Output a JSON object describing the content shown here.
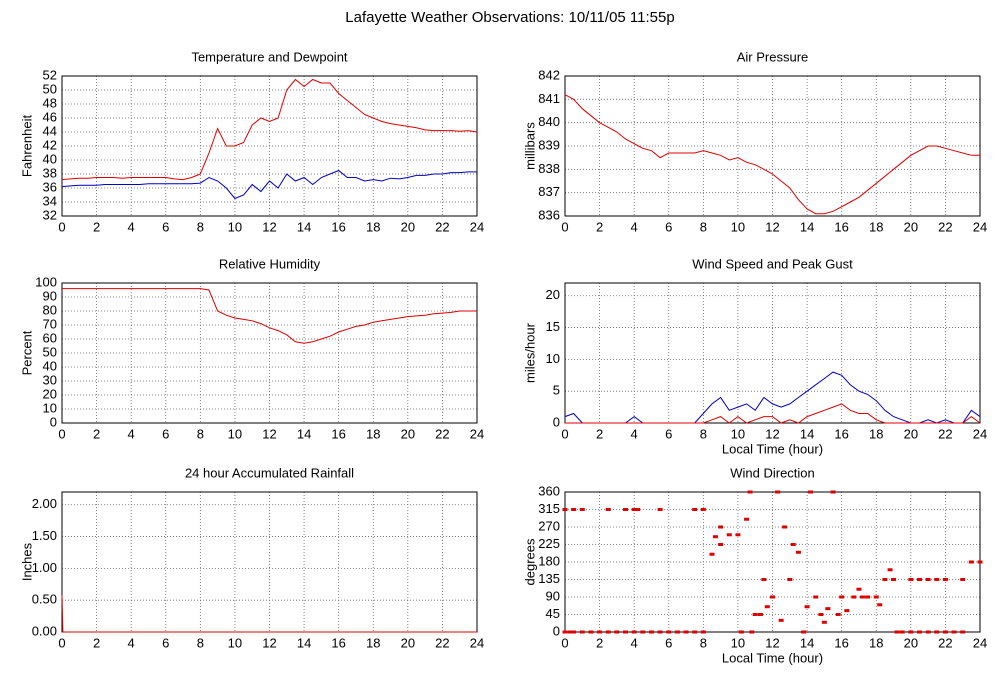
{
  "title": "Lafayette Weather Observations: 10/11/05 11:55p",
  "chart_data": [
    {
      "type": "line",
      "title": "Temperature and Dewpoint",
      "ylabel": "Fahrenheit",
      "x": [
        0,
        0.5,
        1,
        1.5,
        2,
        2.5,
        3,
        3.5,
        4,
        4.5,
        5,
        5.5,
        6,
        6.5,
        7,
        7.5,
        8,
        8.5,
        9,
        9.5,
        10,
        10.5,
        11,
        11.5,
        12,
        12.5,
        13,
        13.5,
        14,
        14.5,
        15,
        15.5,
        16,
        16.5,
        17,
        17.5,
        18,
        18.5,
        19,
        19.5,
        20,
        20.5,
        21,
        21.5,
        22,
        22.5,
        23,
        23.5,
        24
      ],
      "series": [
        {
          "color": "#e00000",
          "values": [
            37.2,
            37.3,
            37.4,
            37.4,
            37.5,
            37.5,
            37.5,
            37.4,
            37.5,
            37.5,
            37.5,
            37.5,
            37.5,
            37.3,
            37.2,
            37.5,
            38,
            41,
            44.5,
            42,
            42,
            42.5,
            45,
            46,
            45.5,
            46,
            50,
            51.5,
            50.5,
            51.5,
            51,
            51,
            49.5,
            48.5,
            47.5,
            46.5,
            46,
            45.5,
            45.2,
            45,
            44.8,
            44.6,
            44.3,
            44.2,
            44.2,
            44.2,
            44.1,
            44.2,
            44
          ]
        },
        {
          "color": "#0000c0",
          "values": [
            36.2,
            36.3,
            36.4,
            36.4,
            36.4,
            36.5,
            36.5,
            36.5,
            36.5,
            36.5,
            36.6,
            36.6,
            36.6,
            36.6,
            36.6,
            36.6,
            36.7,
            37.5,
            37,
            36,
            34.5,
            35,
            36.5,
            35.5,
            37,
            36,
            38,
            37,
            37.5,
            36.5,
            37.5,
            38,
            38.5,
            37.5,
            37.5,
            37,
            37.2,
            37,
            37.4,
            37.3,
            37.5,
            37.8,
            37.8,
            38,
            38,
            38.2,
            38.2,
            38.3,
            38.3
          ]
        }
      ],
      "xlim": [
        0,
        24
      ],
      "xticks": [
        0,
        2,
        4,
        6,
        8,
        10,
        12,
        14,
        16,
        18,
        20,
        22,
        24
      ],
      "ylim": [
        32,
        52
      ],
      "yticks": [
        32,
        34,
        36,
        38,
        40,
        42,
        44,
        46,
        48,
        50,
        52
      ],
      "grid": true
    },
    {
      "type": "line",
      "title": "Air Pressure",
      "ylabel": "millibars",
      "x": [
        0,
        0.5,
        1,
        1.5,
        2,
        2.5,
        3,
        3.5,
        4,
        4.5,
        5,
        5.5,
        6,
        6.5,
        7,
        7.5,
        8,
        8.5,
        9,
        9.5,
        10,
        10.5,
        11,
        11.5,
        12,
        12.5,
        13,
        13.5,
        14,
        14.5,
        15,
        15.5,
        16,
        16.5,
        17,
        17.5,
        18,
        18.5,
        19,
        19.5,
        20,
        20.5,
        21,
        21.5,
        22,
        22.5,
        23,
        23.5,
        24
      ],
      "series": [
        {
          "color": "#e00000",
          "values": [
            841.2,
            841,
            840.6,
            840.3,
            840,
            839.8,
            839.6,
            839.3,
            839.1,
            838.9,
            838.8,
            838.5,
            838.7,
            838.7,
            838.7,
            838.7,
            838.8,
            838.7,
            838.6,
            838.4,
            838.5,
            838.3,
            838.2,
            838,
            837.8,
            837.5,
            837.2,
            836.7,
            836.3,
            836.1,
            836.1,
            836.2,
            836.4,
            836.6,
            836.8,
            837.1,
            837.4,
            837.7,
            838,
            838.3,
            838.6,
            838.8,
            839,
            839,
            838.9,
            838.8,
            838.7,
            838.6,
            838.6
          ]
        }
      ],
      "xlim": [
        0,
        24
      ],
      "xticks": [
        0,
        2,
        4,
        6,
        8,
        10,
        12,
        14,
        16,
        18,
        20,
        22,
        24
      ],
      "ylim": [
        836,
        842
      ],
      "yticks": [
        836,
        837,
        838,
        839,
        840,
        841,
        842
      ],
      "grid": true
    },
    {
      "type": "line",
      "title": "Relative Humidity",
      "ylabel": "Percent",
      "x": [
        0,
        0.5,
        1,
        1.5,
        2,
        2.5,
        3,
        3.5,
        4,
        4.5,
        5,
        5.5,
        6,
        6.5,
        7,
        7.5,
        8,
        8.5,
        9,
        9.5,
        10,
        10.5,
        11,
        11.5,
        12,
        12.5,
        13,
        13.5,
        14,
        14.5,
        15,
        15.5,
        16,
        16.5,
        17,
        17.5,
        18,
        18.5,
        19,
        19.5,
        20,
        20.5,
        21,
        21.5,
        22,
        22.5,
        23,
        23.5,
        24
      ],
      "series": [
        {
          "color": "#e00000",
          "values": [
            96,
            96,
            96,
            96,
            96,
            96,
            96,
            96,
            96,
            96,
            96,
            96,
            96,
            96,
            96,
            96,
            96,
            95,
            80,
            77,
            75,
            74,
            73,
            71,
            68,
            66,
            63,
            58,
            57,
            58,
            60,
            62,
            65,
            67,
            69,
            70,
            72,
            73,
            74,
            75,
            76,
            76.5,
            77,
            78,
            78.5,
            79,
            80,
            80,
            80
          ]
        }
      ],
      "xlim": [
        0,
        24
      ],
      "xticks": [
        0,
        2,
        4,
        6,
        8,
        10,
        12,
        14,
        16,
        18,
        20,
        22,
        24
      ],
      "ylim": [
        0,
        100
      ],
      "yticks": [
        0,
        10,
        20,
        30,
        40,
        50,
        60,
        70,
        80,
        90,
        100
      ],
      "grid": true
    },
    {
      "type": "line",
      "title": "Wind Speed and Peak Gust",
      "ylabel": "miles/hour",
      "xlabel": "Local Time (hour)",
      "x": [
        0,
        0.5,
        1,
        1.5,
        2,
        2.5,
        3,
        3.5,
        4,
        4.5,
        5,
        5.5,
        6,
        6.5,
        7,
        7.5,
        8,
        8.5,
        9,
        9.5,
        10,
        10.5,
        11,
        11.5,
        12,
        12.5,
        13,
        13.5,
        14,
        14.5,
        15,
        15.5,
        16,
        16.5,
        17,
        17.5,
        18,
        18.5,
        19,
        19.5,
        20,
        20.5,
        21,
        21.5,
        22,
        22.5,
        23,
        23.5,
        24
      ],
      "series": [
        {
          "color": "#0000c0",
          "values": [
            1,
            1.5,
            0,
            0,
            0,
            0,
            0,
            0,
            1,
            0,
            0,
            0,
            0,
            0,
            0,
            0,
            1.5,
            3,
            4,
            2,
            2.5,
            3,
            2,
            4,
            3,
            2.5,
            3,
            4,
            5,
            6,
            7,
            8,
            7.5,
            6,
            5,
            4.5,
            3.5,
            2,
            1,
            0.5,
            0,
            0,
            0.5,
            0,
            0.5,
            0,
            0,
            2,
            1
          ]
        },
        {
          "color": "#e00000",
          "values": [
            0,
            0,
            0,
            0,
            0,
            0,
            0,
            0,
            0,
            0,
            0,
            0,
            0,
            0,
            0,
            0,
            0,
            0.5,
            1,
            0,
            1,
            0,
            0.5,
            1,
            1,
            0,
            0.5,
            0,
            1,
            1.5,
            2,
            2.5,
            3,
            2,
            1.5,
            1.5,
            0.5,
            0,
            0,
            0,
            0,
            0,
            0,
            0,
            0,
            0,
            0,
            1,
            0
          ]
        }
      ],
      "xlim": [
        0,
        24
      ],
      "xticks": [
        0,
        2,
        4,
        6,
        8,
        10,
        12,
        14,
        16,
        18,
        20,
        22,
        24
      ],
      "ylim": [
        0,
        22
      ],
      "yticks": [
        0,
        5,
        10,
        15,
        20
      ],
      "grid": true
    },
    {
      "type": "line",
      "title": "24 hour Accumulated Rainfall",
      "ylabel": "Inches",
      "x": [
        0,
        0.05,
        24
      ],
      "series": [
        {
          "color": "#e00000",
          "values": [
            0.58,
            0,
            0
          ]
        }
      ],
      "xlim": [
        0,
        24
      ],
      "xticks": [
        0,
        2,
        4,
        6,
        8,
        10,
        12,
        14,
        16,
        18,
        20,
        22,
        24
      ],
      "ylim": [
        0,
        2.2
      ],
      "yticks": [
        {
          "value": 0,
          "label": "0.00"
        },
        {
          "value": 0.5,
          "label": "0.50"
        },
        {
          "value": 1,
          "label": "1.00"
        },
        {
          "value": 1.5,
          "label": "1.50"
        },
        {
          "value": 2,
          "label": "2.00"
        }
      ],
      "grid": true
    },
    {
      "type": "scatter",
      "title": "Wind Direction",
      "ylabel": "degrees",
      "xlabel": "Local Time (hour)",
      "color": "#e00000",
      "x": [
        0,
        0.3,
        0.5,
        1,
        1.5,
        2,
        2.5,
        3,
        3.5,
        4,
        4.5,
        5,
        5.5,
        6,
        6.5,
        7,
        7.5,
        8,
        0,
        0.5,
        1,
        2.5,
        3.5,
        4,
        4.2,
        5.5,
        7.5,
        8,
        8.5,
        8.7,
        9,
        9,
        9.5,
        10,
        10.2,
        10.5,
        10.7,
        10.8,
        11,
        11.3,
        11.5,
        11.7,
        12,
        12.3,
        12.5,
        12.7,
        13,
        13.2,
        13.5,
        13.8,
        14,
        14.2,
        14.5,
        14.8,
        15,
        15.2,
        15.5,
        15.8,
        16,
        16.3,
        16.7,
        17,
        17.2,
        17.5,
        18,
        18.2,
        18.5,
        18.8,
        19,
        19.2,
        19.5,
        20,
        20.5,
        21,
        21.5,
        22,
        22.5,
        23,
        20,
        20.5,
        21,
        21.5,
        22,
        23,
        23.5,
        24
      ],
      "values": [
        0,
        0,
        0,
        0,
        0,
        0,
        0,
        0,
        0,
        0,
        0,
        0,
        0,
        0,
        0,
        0,
        0,
        0,
        315,
        315,
        315,
        315,
        315,
        315,
        315,
        315,
        315,
        315,
        200,
        245,
        270,
        225,
        250,
        250,
        0,
        290,
        360,
        0,
        45,
        45,
        135,
        65,
        90,
        360,
        30,
        270,
        135,
        225,
        205,
        0,
        65,
        360,
        90,
        45,
        25,
        60,
        360,
        45,
        90,
        55,
        90,
        110,
        90,
        90,
        90,
        70,
        135,
        160,
        135,
        0,
        0,
        0,
        0,
        0,
        0,
        0,
        0,
        0,
        135,
        135,
        135,
        135,
        135,
        135,
        180,
        180
      ],
      "xlim": [
        0,
        24
      ],
      "xticks": [
        0,
        2,
        4,
        6,
        8,
        10,
        12,
        14,
        16,
        18,
        20,
        22,
        24
      ],
      "ylim": [
        0,
        360
      ],
      "yticks": [
        0,
        45,
        90,
        135,
        180,
        225,
        270,
        315,
        360
      ],
      "grid": true
    }
  ]
}
